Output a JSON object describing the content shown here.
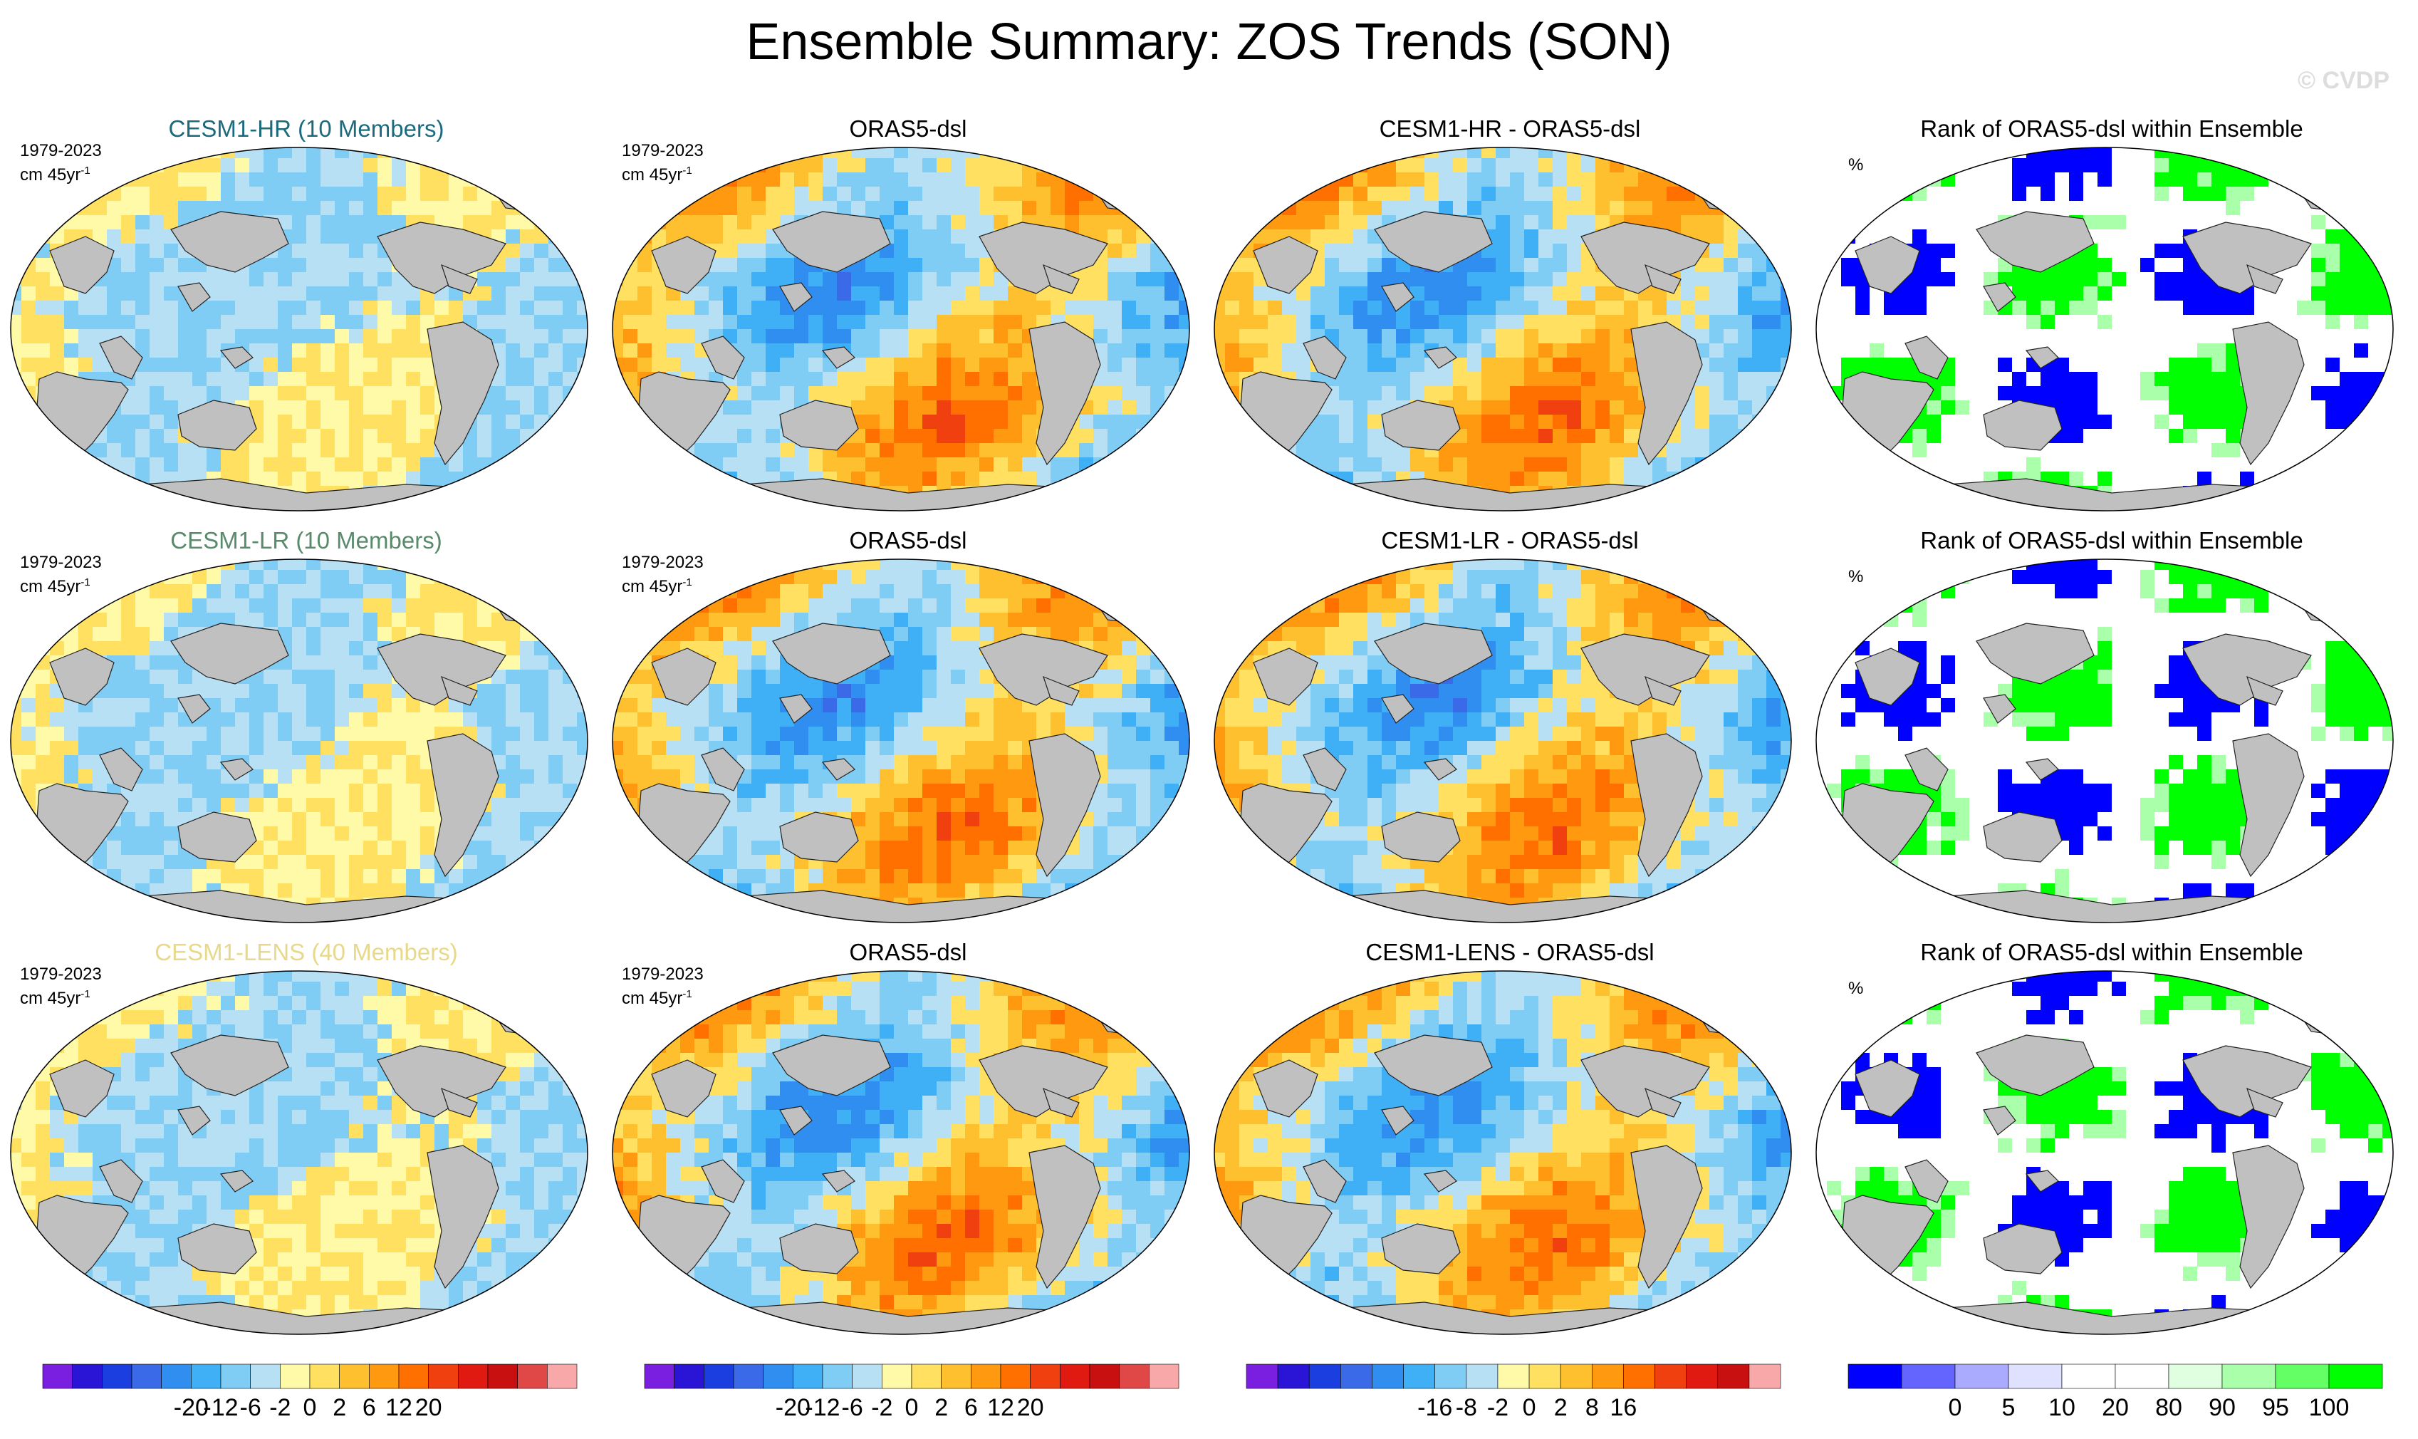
{
  "title": "Ensemble Summary: ZOS Trends (SON)",
  "watermark": "© CVDP",
  "note_period": "1979-2023",
  "note_units_base": "cm 45yr",
  "note_units_exp": "-1",
  "pct_label": "%",
  "rows": [
    {
      "model": "CESM1-HR (10 Members)",
      "obs": "ORAS5-dsl",
      "diff": "CESM1-HR - ORAS5-dsl",
      "rank": "Rank of ORAS5-dsl within Ensemble"
    },
    {
      "model": "CESM1-LR (10 Members)",
      "obs": "ORAS5-dsl",
      "diff": "CESM1-LR - ORAS5-dsl",
      "rank": "Rank of ORAS5-dsl within Ensemble"
    },
    {
      "model": "CESM1-LENS (40 Members)",
      "obs": "ORAS5-dsl",
      "diff": "CESM1-LENS - ORAS5-dsl",
      "rank": "Rank of ORAS5-dsl within Ensemble"
    }
  ],
  "chart_data": [
    {
      "type": "heatmap",
      "name": "trend-colorbar",
      "colors": [
        "#7a1fe0",
        "#2a14d6",
        "#1a3ee0",
        "#3a6ae8",
        "#2f8ef0",
        "#3fb0f5",
        "#7fcdf5",
        "#b8e0f5",
        "#fffaa8",
        "#ffe060",
        "#ffc030",
        "#ff9a10",
        "#ff7000",
        "#f04010",
        "#e01a10",
        "#c81010",
        "#e04848",
        "#f8a8a8"
      ],
      "tick_labels": [
        "-20",
        "-12",
        "-6",
        "-2",
        "0",
        "2",
        "6",
        "12",
        "20"
      ]
    },
    {
      "type": "heatmap",
      "name": "difference-colorbar",
      "colors": [
        "#7a1fe0",
        "#2a14d6",
        "#1a3ee0",
        "#3a6ae8",
        "#2f8ef0",
        "#3fb0f5",
        "#7fcdf5",
        "#b8e0f5",
        "#fffaa8",
        "#ffe060",
        "#ffc030",
        "#ff9a10",
        "#ff7000",
        "#f04010",
        "#e01a10",
        "#c81010",
        "#f8a8a8"
      ],
      "tick_labels": [
        "-16",
        "-8",
        "-2",
        "0",
        "2",
        "8",
        "16"
      ]
    },
    {
      "type": "heatmap",
      "name": "rank-colorbar",
      "colors": [
        "#0000ff",
        "#6464ff",
        "#aaaaff",
        "#e0e0ff",
        "#ffffff",
        "#ffffff",
        "#e0ffe0",
        "#aaffaa",
        "#64ff64",
        "#00ff00"
      ],
      "tick_labels": [
        "0",
        "5",
        "10",
        "20",
        "80",
        "90",
        "95",
        "100"
      ]
    }
  ]
}
